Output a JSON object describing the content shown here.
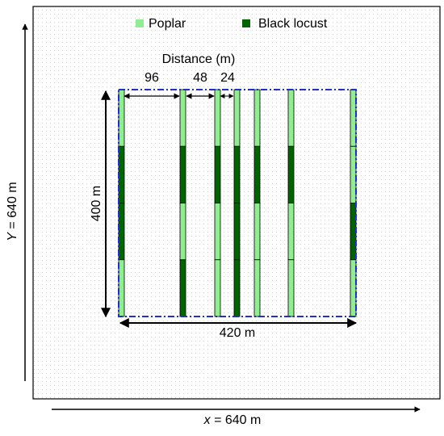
{
  "legend": {
    "items": [
      "Poplar",
      "Black locust"
    ]
  },
  "distance": {
    "title": "Distance (m)",
    "labels": [
      "96",
      "48",
      "24"
    ]
  },
  "field": {
    "height_label": "400 m",
    "width_label": "420 m"
  },
  "axes": {
    "y": {
      "var": "Y",
      "text": " = 640 m"
    },
    "x": {
      "var": "x",
      "text": " = 640 m"
    }
  }
}
